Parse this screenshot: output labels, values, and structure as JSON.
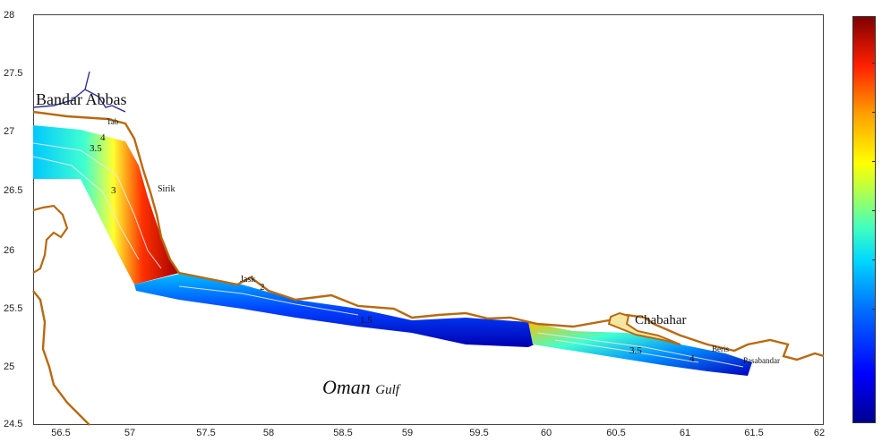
{
  "map": {
    "places": {
      "bandar_abbas": "Bandar Abbas",
      "tab": "Tab",
      "sirik": "Sirik",
      "jask": "Jask",
      "chabahar": "Chabahar",
      "beris": "Beris",
      "pasabandar": "Pasabandar"
    },
    "sea_label": {
      "main": "Oman",
      "suffix": "Gulf"
    },
    "x_ticks": [
      "56.5",
      "57",
      "57.5",
      "58",
      "58.5",
      "59",
      "59.5",
      "60",
      "60.5",
      "61",
      "61.5",
      "62"
    ],
    "y_ticks": [
      "28",
      "27.5",
      "27",
      "26.5",
      "26",
      "25.5",
      "25",
      "24.5"
    ],
    "contour_labels": [
      "4",
      "3.5",
      "3",
      "2",
      "1.5",
      "3.5",
      "4"
    ],
    "colors": {
      "coast": "#b8690f",
      "border": "#2f2f8f",
      "contour": "#e8e8e8"
    }
  },
  "colorbar": {
    "scale": "jet"
  }
}
